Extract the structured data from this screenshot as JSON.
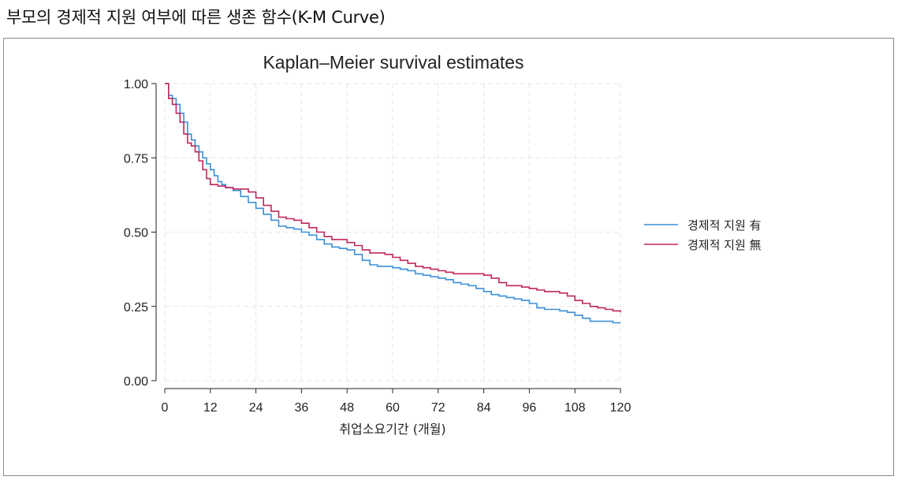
{
  "page_heading": "부모의 경제적 지원 여부에 따른 생존 함수(K-M Curve)",
  "chart_data": {
    "type": "line",
    "title": "Kaplan–Meier survival estimates",
    "xlabel": "취업소요기간 (개월)",
    "ylabel": "",
    "xlim": [
      0,
      120
    ],
    "ylim": [
      0,
      1
    ],
    "x_ticks": [
      "0",
      "12",
      "24",
      "36",
      "48",
      "60",
      "72",
      "84",
      "96",
      "108",
      "120"
    ],
    "y_ticks": [
      "0.00",
      "0.25",
      "0.50",
      "0.75",
      "1.00"
    ],
    "grid": true,
    "legend_position": "right",
    "series": [
      {
        "name": "경제적 지원 有",
        "color": "#3a8fd8",
        "points": [
          [
            0,
            1.0
          ],
          [
            1,
            0.96
          ],
          [
            2,
            0.95
          ],
          [
            3,
            0.93
          ],
          [
            4,
            0.9
          ],
          [
            5,
            0.87
          ],
          [
            6,
            0.83
          ],
          [
            7,
            0.81
          ],
          [
            8,
            0.79
          ],
          [
            9,
            0.77
          ],
          [
            10,
            0.75
          ],
          [
            11,
            0.73
          ],
          [
            12,
            0.71
          ],
          [
            13,
            0.69
          ],
          [
            14,
            0.67
          ],
          [
            15,
            0.66
          ],
          [
            16,
            0.65
          ],
          [
            18,
            0.64
          ],
          [
            20,
            0.62
          ],
          [
            22,
            0.6
          ],
          [
            24,
            0.58
          ],
          [
            26,
            0.56
          ],
          [
            28,
            0.54
          ],
          [
            30,
            0.52
          ],
          [
            32,
            0.515
          ],
          [
            34,
            0.51
          ],
          [
            36,
            0.5
          ],
          [
            38,
            0.49
          ],
          [
            40,
            0.475
          ],
          [
            42,
            0.46
          ],
          [
            44,
            0.45
          ],
          [
            46,
            0.445
          ],
          [
            48,
            0.44
          ],
          [
            50,
            0.425
          ],
          [
            52,
            0.405
          ],
          [
            54,
            0.39
          ],
          [
            56,
            0.385
          ],
          [
            60,
            0.38
          ],
          [
            62,
            0.375
          ],
          [
            64,
            0.37
          ],
          [
            66,
            0.36
          ],
          [
            68,
            0.355
          ],
          [
            70,
            0.35
          ],
          [
            72,
            0.345
          ],
          [
            74,
            0.34
          ],
          [
            76,
            0.33
          ],
          [
            78,
            0.325
          ],
          [
            80,
            0.32
          ],
          [
            82,
            0.31
          ],
          [
            84,
            0.3
          ],
          [
            86,
            0.29
          ],
          [
            88,
            0.285
          ],
          [
            90,
            0.28
          ],
          [
            92,
            0.275
          ],
          [
            94,
            0.27
          ],
          [
            96,
            0.26
          ],
          [
            98,
            0.245
          ],
          [
            100,
            0.24
          ],
          [
            104,
            0.235
          ],
          [
            106,
            0.23
          ],
          [
            108,
            0.22
          ],
          [
            110,
            0.21
          ],
          [
            112,
            0.2
          ],
          [
            116,
            0.2
          ],
          [
            118,
            0.195
          ],
          [
            120,
            0.195
          ]
        ]
      },
      {
        "name": "경제적 지원 無",
        "color": "#c0265c",
        "points": [
          [
            0,
            1.0
          ],
          [
            1,
            0.95
          ],
          [
            2,
            0.93
          ],
          [
            3,
            0.9
          ],
          [
            4,
            0.87
          ],
          [
            5,
            0.83
          ],
          [
            6,
            0.8
          ],
          [
            7,
            0.79
          ],
          [
            8,
            0.77
          ],
          [
            9,
            0.74
          ],
          [
            10,
            0.71
          ],
          [
            11,
            0.68
          ],
          [
            12,
            0.66
          ],
          [
            14,
            0.655
          ],
          [
            16,
            0.65
          ],
          [
            18,
            0.645
          ],
          [
            20,
            0.645
          ],
          [
            22,
            0.635
          ],
          [
            24,
            0.615
          ],
          [
            26,
            0.59
          ],
          [
            28,
            0.57
          ],
          [
            30,
            0.55
          ],
          [
            32,
            0.545
          ],
          [
            34,
            0.54
          ],
          [
            36,
            0.53
          ],
          [
            38,
            0.515
          ],
          [
            40,
            0.5
          ],
          [
            42,
            0.485
          ],
          [
            44,
            0.475
          ],
          [
            48,
            0.465
          ],
          [
            50,
            0.455
          ],
          [
            52,
            0.44
          ],
          [
            54,
            0.43
          ],
          [
            58,
            0.425
          ],
          [
            60,
            0.415
          ],
          [
            62,
            0.405
          ],
          [
            64,
            0.395
          ],
          [
            66,
            0.385
          ],
          [
            68,
            0.38
          ],
          [
            70,
            0.375
          ],
          [
            72,
            0.37
          ],
          [
            74,
            0.365
          ],
          [
            76,
            0.36
          ],
          [
            80,
            0.36
          ],
          [
            84,
            0.355
          ],
          [
            86,
            0.345
          ],
          [
            88,
            0.33
          ],
          [
            90,
            0.32
          ],
          [
            94,
            0.315
          ],
          [
            96,
            0.31
          ],
          [
            98,
            0.305
          ],
          [
            100,
            0.3
          ],
          [
            104,
            0.295
          ],
          [
            106,
            0.285
          ],
          [
            108,
            0.27
          ],
          [
            110,
            0.26
          ],
          [
            112,
            0.25
          ],
          [
            114,
            0.245
          ],
          [
            116,
            0.24
          ],
          [
            118,
            0.235
          ],
          [
            120,
            0.23
          ]
        ]
      }
    ]
  }
}
